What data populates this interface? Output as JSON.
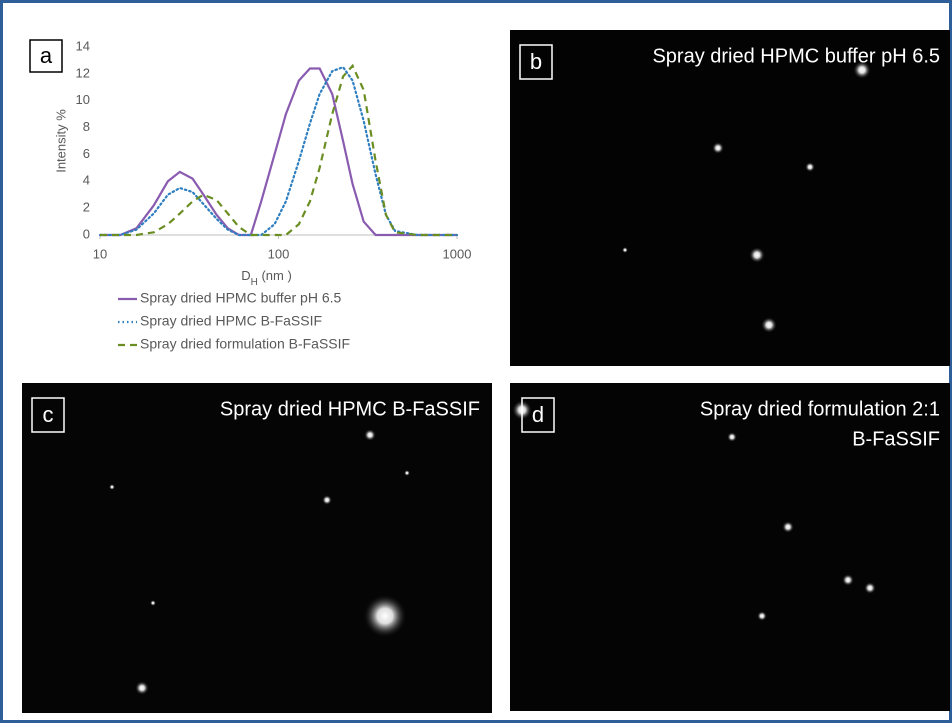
{
  "chart_data": {
    "type": "line",
    "panel_label": "a",
    "ylabel": "Intensity %",
    "xlabel": [
      "D",
      "H",
      " (nm )"
    ],
    "log_x": true,
    "xlim": [
      10,
      1000
    ],
    "xticks": [
      10,
      100,
      1000
    ],
    "ylim": [
      0,
      14
    ],
    "yticks": [
      0,
      2,
      4,
      6,
      8,
      10,
      12,
      14
    ],
    "legend": "bottom",
    "x": [
      10,
      13,
      16,
      20,
      24,
      28,
      33,
      38,
      45,
      52,
      60,
      70,
      80,
      95,
      110,
      130,
      150,
      170,
      200,
      230,
      260,
      300,
      350,
      400,
      450,
      600,
      1000
    ],
    "series": [
      {
        "name": "Spray dried HPMC buffer pH 6.5",
        "color": "#8a5cb0",
        "dash": "solid",
        "values": [
          0,
          0,
          0.5,
          2.2,
          4.0,
          4.7,
          4.2,
          3.0,
          1.5,
          0.5,
          0,
          0,
          2.5,
          6.0,
          9.0,
          11.5,
          12.4,
          12.4,
          10.5,
          7.0,
          3.8,
          1.0,
          0,
          0,
          0,
          0,
          0
        ]
      },
      {
        "name": "Spray dried HPMC B-FaSSIF",
        "color": "#2f7fc1",
        "dash": "dotted",
        "values": [
          0,
          0,
          0.4,
          1.6,
          3.0,
          3.5,
          3.2,
          2.3,
          1.2,
          0.4,
          0,
          0,
          0,
          0.8,
          2.5,
          5.5,
          8.3,
          10.5,
          12.2,
          12.5,
          11.5,
          8.5,
          4.5,
          1.5,
          0.3,
          0,
          0
        ]
      },
      {
        "name": "Spray dried formulation B-FaSSIF",
        "color": "#6b8e23",
        "dash": "dashed",
        "values": [
          0,
          0,
          0,
          0.2,
          0.8,
          1.6,
          2.5,
          3.0,
          2.6,
          1.6,
          0.6,
          0,
          0,
          0,
          0,
          0.8,
          2.5,
          5.0,
          9.0,
          11.8,
          12.6,
          10.8,
          5.5,
          1.5,
          0.2,
          0,
          0
        ]
      }
    ]
  },
  "panels": [
    {
      "label": "b",
      "title": [
        "Spray dried HPMC buffer pH 6.5"
      ]
    },
    {
      "label": "c",
      "title": [
        "Spray dried HPMC B-FaSSIF"
      ]
    },
    {
      "label": "d",
      "title": [
        "Spray dried formulation  2:1",
        "B-FaSSIF"
      ]
    }
  ]
}
